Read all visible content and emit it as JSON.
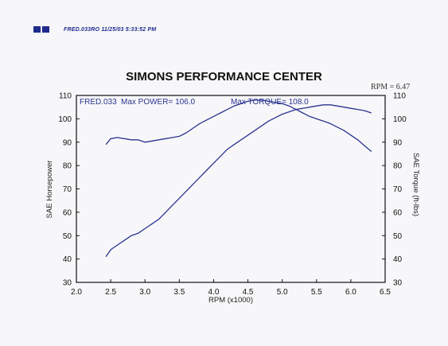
{
  "header": {
    "text": "FRED.033RO  11/25/03 5:33:52 PM"
  },
  "colors": {
    "curve": "#2b3490",
    "header_blocks": "#1f2a8f",
    "frame": "#111111"
  },
  "chart_data": {
    "type": "line",
    "title": "SIMONS PERFORMANCE CENTER",
    "rpm_note": "RPM = 6.47",
    "xlabel": "RPM (x1000)",
    "ylabel_left": "SAE Horsepower",
    "ylabel_right": "SAE Torque (ft-lbs)",
    "xlim": [
      2.0,
      6.5
    ],
    "ylim": [
      30,
      110
    ],
    "x_ticks": [
      "2.0",
      "2.5",
      "3.0",
      "3.5",
      "4.0",
      "4.5",
      "5.0",
      "5.5",
      "6.0",
      "6.5"
    ],
    "y_ticks_left": [
      "30",
      "40",
      "50",
      "60",
      "70",
      "80",
      "90",
      "100",
      "110"
    ],
    "y_ticks_right": [
      "30",
      "40",
      "50",
      "60",
      "70",
      "80",
      "90",
      "100",
      "110"
    ],
    "annotations": {
      "run": "FRED.033",
      "max_power": "Max POWER= 106.0",
      "max_torque": "Max TORQUE= 108.0"
    },
    "grid": false,
    "series": [
      {
        "axis": "left",
        "x": [
          2.43,
          2.5,
          2.6,
          2.7,
          2.8,
          2.9,
          3.0,
          3.1,
          3.2,
          3.3,
          3.4,
          3.5,
          3.6,
          3.7,
          3.8,
          3.9,
          4.0,
          4.1,
          4.2,
          4.3,
          4.4,
          4.5,
          4.6,
          4.7,
          4.8,
          4.9,
          5.0,
          5.1,
          5.2,
          5.3,
          5.4,
          5.5,
          5.6,
          5.7,
          5.8,
          5.9,
          6.0,
          6.1,
          6.2,
          6.3
        ],
        "values": [
          41,
          44,
          46,
          48,
          50,
          51,
          53,
          55,
          57,
          60,
          63,
          66,
          69,
          72,
          75,
          78,
          81,
          84,
          87,
          89,
          91,
          93,
          95,
          97,
          99,
          100.5,
          102,
          103,
          104,
          104.5,
          105,
          105.5,
          106,
          106,
          105.5,
          105,
          104.5,
          104,
          103.5,
          102.5
        ]
      },
      {
        "axis": "right",
        "x": [
          2.43,
          2.5,
          2.6,
          2.7,
          2.8,
          2.9,
          3.0,
          3.1,
          3.2,
          3.3,
          3.4,
          3.5,
          3.6,
          3.7,
          3.8,
          3.9,
          4.0,
          4.1,
          4.2,
          4.3,
          4.4,
          4.5,
          4.6,
          4.7,
          4.8,
          4.9,
          5.0,
          5.1,
          5.2,
          5.3,
          5.4,
          5.5,
          5.6,
          5.7,
          5.8,
          5.9,
          6.0,
          6.1,
          6.2,
          6.3
        ],
        "values": [
          89,
          91.5,
          92,
          91.5,
          91,
          91,
          90,
          90.5,
          91,
          91.5,
          92,
          92.5,
          94,
          96,
          98,
          99.5,
          101,
          102.5,
          104,
          105.5,
          106.5,
          107.5,
          108,
          108,
          107.5,
          107,
          106.5,
          105.5,
          104,
          102.5,
          101,
          100,
          99,
          98,
          96.5,
          95,
          93,
          91,
          88.5,
          86
        ]
      }
    ]
  }
}
